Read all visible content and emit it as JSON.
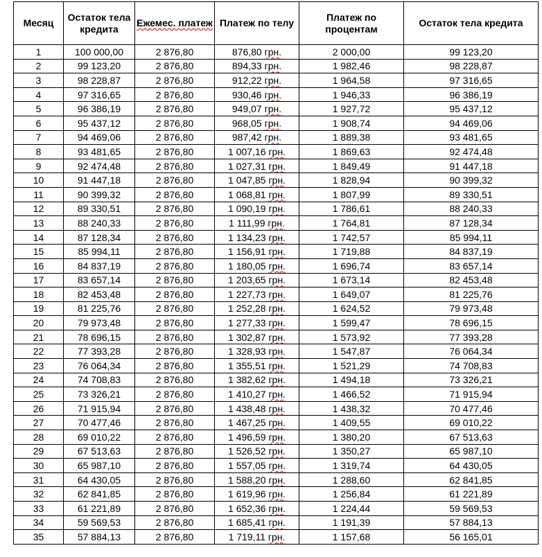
{
  "columns": [
    "Месяц",
    "Остаток тела кредита",
    "Ежемес. платеж",
    "Платеж по телу",
    "Платеж по процентам",
    "Остаток тела кредита"
  ],
  "currency_suffix": "грн.",
  "rows": [
    [
      "1",
      "100 000,00",
      "2 876,80",
      "876,80 грн.",
      "2 000,00",
      "99 123,20"
    ],
    [
      "2",
      "99 123,20",
      "2 876,80",
      "894,33 грн.",
      "1 982,46",
      "98 228,87"
    ],
    [
      "3",
      "98 228,87",
      "2 876,80",
      "912,22 грн.",
      "1 964,58",
      "97 316,65"
    ],
    [
      "4",
      "97 316,65",
      "2 876,80",
      "930,46 грн.",
      "1 946,33",
      "96 386,19"
    ],
    [
      "5",
      "96 386,19",
      "2 876,80",
      "949,07 грн.",
      "1 927,72",
      "95 437,12"
    ],
    [
      "6",
      "95 437,12",
      "2 876,80",
      "968,05 грн.",
      "1 908,74",
      "94 469,06"
    ],
    [
      "7",
      "94 469,06",
      "2 876,80",
      "987,42 грн.",
      "1 889,38",
      "93 481,65"
    ],
    [
      "8",
      "93 481,65",
      "2 876,80",
      "1 007,16 грн.",
      "1 869,63",
      "92 474,48"
    ],
    [
      "9",
      "92 474,48",
      "2 876,80",
      "1 027,31 грн.",
      "1 849,49",
      "91 447,18"
    ],
    [
      "10",
      "91 447,18",
      "2 876,80",
      "1 047,85 грн.",
      "1 828,94",
      "90 399,32"
    ],
    [
      "11",
      "90 399,32",
      "2 876,80",
      "1 068,81 грн.",
      "1 807,99",
      "89 330,51"
    ],
    [
      "12",
      "89 330,51",
      "2 876,80",
      "1 090,19 грн.",
      "1 786,61",
      "88 240,33"
    ],
    [
      "13",
      "88 240,33",
      "2 876,80",
      "1 111,99 грн.",
      "1 764,81",
      "87 128,34"
    ],
    [
      "14",
      "87 128,34",
      "2 876,80",
      "1 134,23 грн.",
      "1 742,57",
      "85 994,11"
    ],
    [
      "15",
      "85 994,11",
      "2 876,80",
      "1 156,91 грн.",
      "1 719,88",
      "84 837,19"
    ],
    [
      "16",
      "84 837,19",
      "2 876,80",
      "1 180,05 грн.",
      "1 696,74",
      "83 657,14"
    ],
    [
      "17",
      "83 657,14",
      "2 876,80",
      "1 203,65 грн.",
      "1 673,14",
      "82 453,48"
    ],
    [
      "18",
      "82 453,48",
      "2 876,80",
      "1 227,73 грн.",
      "1 649,07",
      "81 225,76"
    ],
    [
      "19",
      "81 225,76",
      "2 876,80",
      "1 252,28 грн.",
      "1 624,52",
      "79 973,48"
    ],
    [
      "20",
      "79 973,48",
      "2 876,80",
      "1 277,33 грн.",
      "1 599,47",
      "78 696,15"
    ],
    [
      "21",
      "78 696,15",
      "2 876,80",
      "1 302,87 грн.",
      "1 573,92",
      "77 393,28"
    ],
    [
      "22",
      "77 393,28",
      "2 876,80",
      "1 328,93 грн.",
      "1 547,87",
      "76 064,34"
    ],
    [
      "23",
      "76 064,34",
      "2 876,80",
      "1 355,51 грн.",
      "1 521,29",
      "74 708,83"
    ],
    [
      "24",
      "74 708,83",
      "2 876,80",
      "1 382,62 грн.",
      "1 494,18",
      "73 326,21"
    ],
    [
      "25",
      "73 326,21",
      "2 876,80",
      "1 410,27 грн.",
      "1 466,52",
      "71 915,94"
    ],
    [
      "26",
      "71 915,94",
      "2 876,80",
      "1 438,48 грн.",
      "1 438,32",
      "70 477,46"
    ],
    [
      "27",
      "70 477,46",
      "2 876,80",
      "1 467,25 грн.",
      "1 409,55",
      "69 010,22"
    ],
    [
      "28",
      "69 010,22",
      "2 876,80",
      "1 496,59 грн.",
      "1 380,20",
      "67 513,63"
    ],
    [
      "29",
      "67 513,63",
      "2 876,80",
      "1 526,52 грн.",
      "1 350,27",
      "65 987,10"
    ],
    [
      "30",
      "65 987,10",
      "2 876,80",
      "1 557,05 грн.",
      "1 319,74",
      "64 430,05"
    ],
    [
      "31",
      "64 430,05",
      "2 876,80",
      "1 588,20 грн.",
      "1 288,60",
      "62 841,85"
    ],
    [
      "32",
      "62 841,85",
      "2 876,80",
      "1 619,96 грн.",
      "1 256,84",
      "61 221,89"
    ],
    [
      "33",
      "61 221,89",
      "2 876,80",
      "1 652,36 грн.",
      "1 224,44",
      "59 569,53"
    ],
    [
      "34",
      "59 569,53",
      "2 876,80",
      "1 685,41 грн.",
      "1 191,39",
      "57 884,13"
    ],
    [
      "35",
      "57 884,13",
      "2 876,80",
      "1 719,11 грн.",
      "1 157,68",
      "56 165,01"
    ]
  ]
}
